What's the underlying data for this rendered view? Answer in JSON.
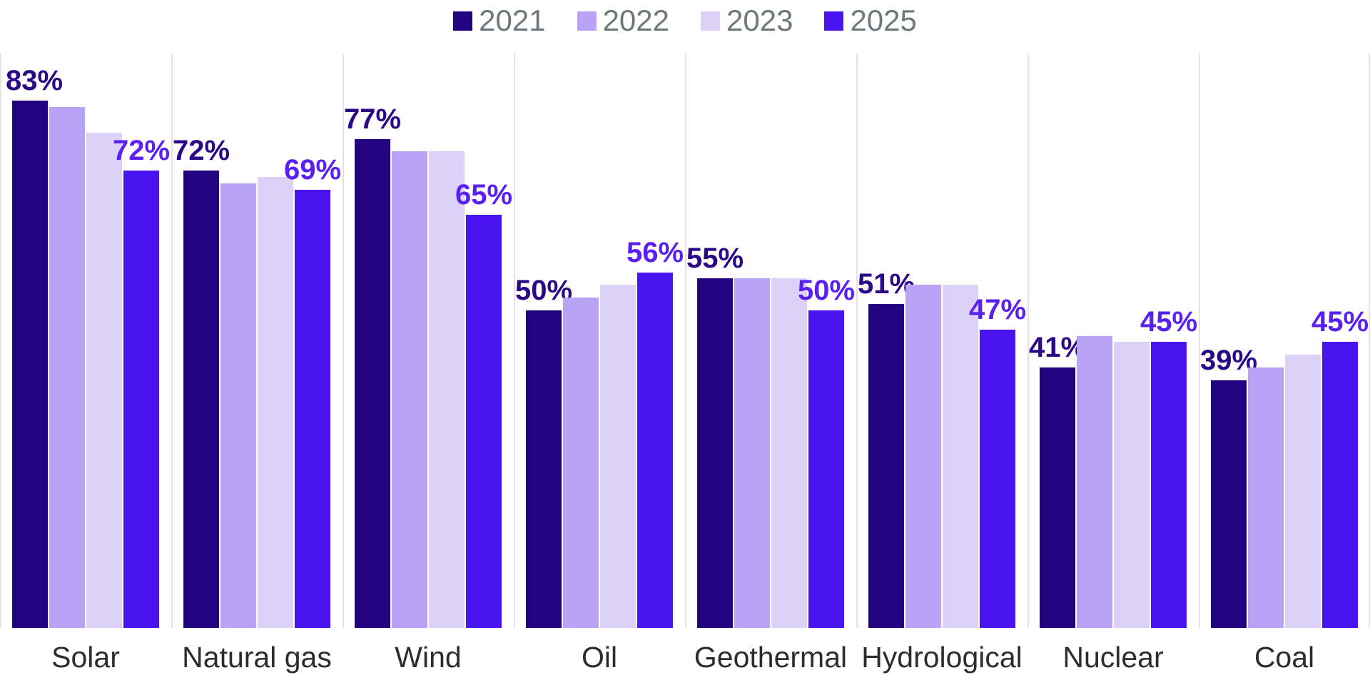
{
  "legend": {
    "items": [
      {
        "label": "2021",
        "color": "#230480"
      },
      {
        "label": "2022",
        "color": "#b9a3f7"
      },
      {
        "label": "2023",
        "color": "#dcd2f8"
      },
      {
        "label": "2025",
        "color": "#4a14f0"
      }
    ],
    "text_color": "#6d787a"
  },
  "chart_data": {
    "type": "bar",
    "title": "",
    "xlabel": "",
    "ylabel": "",
    "value_suffix": "%",
    "categories": [
      "Solar",
      "Natural gas",
      "Wind",
      "Oil",
      "Geothermal",
      "Hydrological",
      "Nuclear",
      "Coal"
    ],
    "series": [
      {
        "name": "2021",
        "color": "#230480",
        "label_color": "#2a0887",
        "show_labels": true,
        "values": [
          83,
          72,
          77,
          50,
          55,
          51,
          41,
          39
        ]
      },
      {
        "name": "2022",
        "color": "#b9a3f7",
        "show_labels": false,
        "values": [
          82,
          70,
          75,
          52,
          55,
          54,
          46,
          41
        ]
      },
      {
        "name": "2023",
        "color": "#dcd2f8",
        "show_labels": false,
        "values": [
          78,
          71,
          75,
          54,
          55,
          54,
          45,
          43
        ]
      },
      {
        "name": "2025",
        "color": "#4a14f0",
        "label_color": "#5a20f3",
        "show_labels": true,
        "values": [
          72,
          69,
          65,
          56,
          50,
          47,
          45,
          45
        ]
      }
    ],
    "shown_data_labels": {
      "2021": [
        "83%",
        "72%",
        "77%",
        "50%",
        "55%",
        "51%",
        "41%",
        "39%"
      ],
      "2025": [
        "72%",
        "69%",
        "65%",
        "56%",
        "50%",
        "47%",
        "45%",
        "45%"
      ]
    },
    "ylim": [
      0,
      90
    ],
    "grid": "vertical-category-separators",
    "gridline_color": "#e3e3e6",
    "legend_position": "top",
    "category_text_color": "#2b2e31"
  }
}
